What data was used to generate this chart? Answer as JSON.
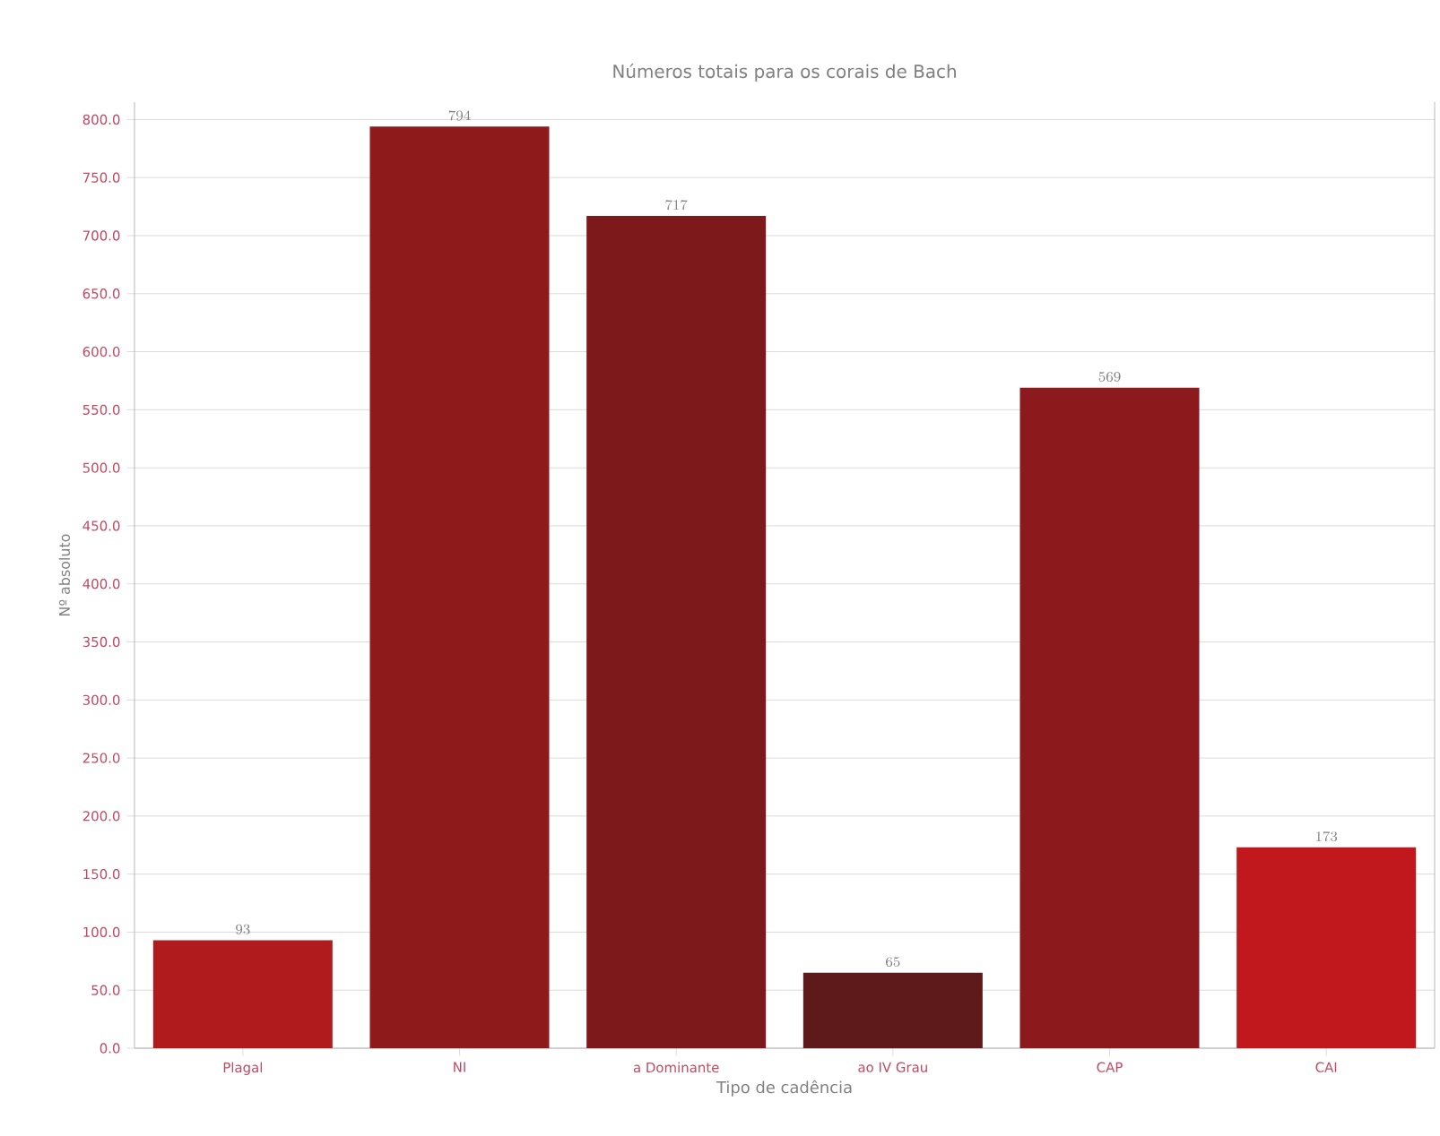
{
  "chart_data": {
    "type": "bar",
    "title": "Números totais para os corais de Bach",
    "xlabel": "Tipo de cadência",
    "ylabel": "Nº absoluto",
    "categories": [
      "Plagal",
      "NI",
      "a Dominante",
      "ao IV Grau",
      "CAP",
      "CAI"
    ],
    "values": [
      93,
      794,
      717,
      65,
      569,
      173
    ],
    "colors": [
      "#b01c1e",
      "#8e1a1b",
      "#7e191b",
      "#5e1a1a",
      "#8c1a1c",
      "#c0181c"
    ],
    "data_labels": true,
    "grid": "y",
    "ylim": [
      0,
      815
    ],
    "yticks": [
      {
        "value": 0,
        "label": "0.0"
      },
      {
        "value": 50,
        "label": "50.0"
      },
      {
        "value": 100,
        "label": "100.0"
      },
      {
        "value": 150,
        "label": "150.0"
      },
      {
        "value": 200,
        "label": "200.0"
      },
      {
        "value": 250,
        "label": "250.0"
      },
      {
        "value": 300,
        "label": "300.0"
      },
      {
        "value": 350,
        "label": "350.0"
      },
      {
        "value": 400,
        "label": "400.0"
      },
      {
        "value": 450,
        "label": "450.0"
      },
      {
        "value": 500,
        "label": "500.0"
      },
      {
        "value": 550,
        "label": "550.0"
      },
      {
        "value": 600,
        "label": "600.0"
      },
      {
        "value": 650,
        "label": "650.0"
      },
      {
        "value": 700,
        "label": "700.0"
      },
      {
        "value": 750,
        "label": "750.0"
      },
      {
        "value": 800,
        "label": "800.0"
      }
    ]
  }
}
